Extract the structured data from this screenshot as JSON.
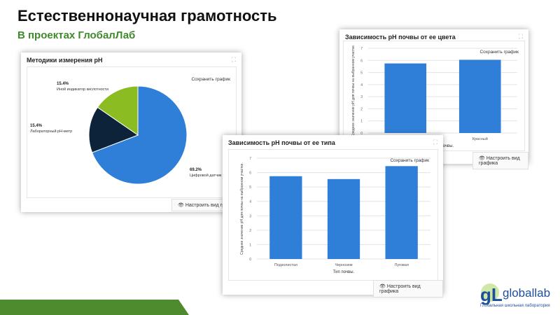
{
  "slide": {
    "title": "Естественнонаучная грамотность",
    "subtitle": "В проектах ГлобалЛаб"
  },
  "common": {
    "save_label": "Сохранить график",
    "configure_label": "Настроить вид графика",
    "configure_label_short": "Настроить вид графи"
  },
  "logo": {
    "name": "globallab",
    "tagline": "Глобальная школьная лаборатория",
    "colors": {
      "green": "#6aa83a",
      "blue": "#1f4e9a"
    }
  },
  "chart_data": [
    {
      "type": "pie",
      "title": "Методики измерения pH",
      "slices": [
        {
          "label": "Цифровой датчик pH",
          "value": 69.2,
          "pct_label": "69.2%",
          "color": "#2f7ed8"
        },
        {
          "label": "Лабораторный pH-метр",
          "value": 15.4,
          "pct_label": "15.4%",
          "color": "#0d233a"
        },
        {
          "label": "Иной индикатор кислотности",
          "value": 15.4,
          "pct_label": "15.4%",
          "color": "#8bbc21"
        }
      ]
    },
    {
      "type": "bar",
      "title": "Зависимость pH почвы от ее цвета",
      "categories": [
        "",
        "Красный"
      ],
      "values": [
        5.75,
        6.05
      ],
      "xlabel": "...та почвы.",
      "ylabel": "Среднее значение pH для почвы на выбранном участке.",
      "ylim": [
        0,
        7
      ],
      "yticks": [
        "0",
        "1",
        "2",
        "3",
        "4",
        "5",
        "6",
        "7"
      ],
      "grid": true,
      "color": "#2f7ed8"
    },
    {
      "type": "bar",
      "title": "Зависимость pH почвы от ее типа",
      "categories": [
        "Подзолистая",
        "Чернозем",
        "Луговая"
      ],
      "values": [
        5.75,
        5.55,
        6.45
      ],
      "xlabel": "Тип почвы.",
      "ylabel": "Среднее значение pH для почвы на выбранном участке.",
      "ylim": [
        0,
        7
      ],
      "yticks": [
        "0",
        "1",
        "2",
        "3",
        "4",
        "5",
        "6",
        "7"
      ],
      "grid": true,
      "color": "#2f7ed8"
    }
  ]
}
